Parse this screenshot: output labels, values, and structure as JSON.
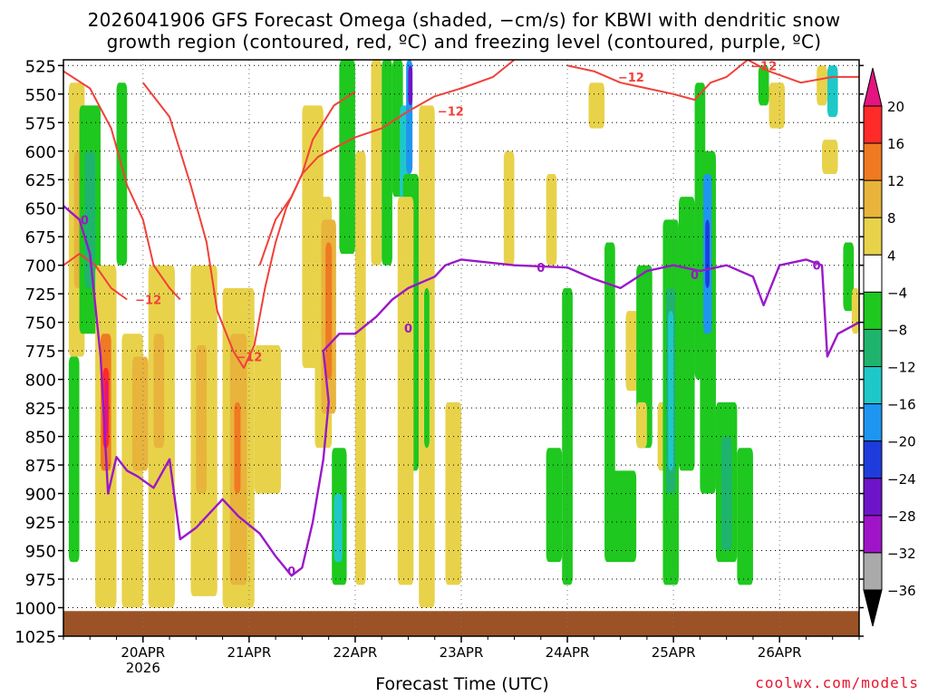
{
  "title_line1": "2026041906 GFS Forecast Omega (shaded, −cm/s) for KBWI with dendritic snow",
  "title_line2": "growth region (contoured, red, ºC) and freezing level (contoured, purple, ºC)",
  "xlabel": "Forecast Time (UTC)",
  "credit": "coolwx.com/models",
  "chart_data": {
    "type": "heatmap",
    "x_ticks": [
      "20APR",
      "21APR",
      "22APR",
      "23APR",
      "24APR",
      "25APR",
      "26APR"
    ],
    "x_tick_year": "2026",
    "x_range_days": [
      19.25,
      26.75
    ],
    "y_ticks": [
      525,
      550,
      575,
      600,
      625,
      650,
      675,
      700,
      725,
      750,
      775,
      800,
      825,
      850,
      875,
      900,
      925,
      950,
      975,
      1000,
      1025
    ],
    "y_range_hpa": [
      520,
      1025
    ],
    "grid": true,
    "colorbar": {
      "labels": [
        "20",
        "16",
        "12",
        "8",
        "4",
        "−4",
        "−8",
        "−12",
        "−16",
        "−20",
        "−24",
        "−28",
        "−32",
        "−36"
      ],
      "colors": [
        "#ff2a2a",
        "#f07a22",
        "#e8b43c",
        "#e8d24a",
        "#ffffff",
        "#1ec81e",
        "#1eb46e",
        "#1ec8c8",
        "#1e96f0",
        "#1e3cdc",
        "#6e14c8",
        "#a014c8",
        "#aaaaaa"
      ],
      "over_color": "#e3157f",
      "under_color": "#000000"
    },
    "ground_color": "#9b5226",
    "red_contour_label": "−12",
    "purple_contour_label": "0",
    "freezing_level": [
      [
        19.25,
        648
      ],
      [
        19.4,
        660
      ],
      [
        19.5,
        690
      ],
      [
        19.6,
        780
      ],
      [
        19.67,
        900
      ],
      [
        19.75,
        868
      ],
      [
        19.85,
        880
      ],
      [
        19.95,
        885
      ],
      [
        20.1,
        895
      ],
      [
        20.25,
        870
      ],
      [
        20.35,
        940
      ],
      [
        20.5,
        930
      ],
      [
        20.6,
        920
      ],
      [
        20.75,
        905
      ],
      [
        20.9,
        920
      ],
      [
        21.1,
        935
      ],
      [
        21.25,
        955
      ],
      [
        21.4,
        972
      ],
      [
        21.5,
        965
      ],
      [
        21.6,
        925
      ],
      [
        21.7,
        870
      ],
      [
        21.75,
        820
      ],
      [
        21.7,
        775
      ],
      [
        21.85,
        760
      ],
      [
        22.0,
        760
      ],
      [
        22.2,
        745
      ],
      [
        22.35,
        730
      ],
      [
        22.5,
        720
      ],
      [
        22.75,
        710
      ],
      [
        22.85,
        700
      ],
      [
        23.0,
        695
      ],
      [
        23.5,
        700
      ],
      [
        24.0,
        702
      ],
      [
        24.25,
        712
      ],
      [
        24.5,
        720
      ],
      [
        24.75,
        705
      ],
      [
        25.0,
        700
      ],
      [
        25.25,
        705
      ],
      [
        25.5,
        700
      ],
      [
        25.75,
        710
      ],
      [
        25.85,
        735
      ],
      [
        26.0,
        700
      ],
      [
        26.25,
        695
      ],
      [
        26.4,
        700
      ],
      [
        26.45,
        780
      ],
      [
        26.55,
        760
      ],
      [
        26.75,
        750
      ]
    ],
    "dgz_top": [
      [
        19.25,
        530
      ],
      [
        19.5,
        545
      ],
      [
        19.7,
        580
      ],
      [
        19.85,
        630
      ],
      [
        20.0,
        660
      ],
      [
        20.1,
        700
      ],
      [
        20.25,
        720
      ],
      [
        20.35,
        730
      ]
    ],
    "dgz_upper": [
      [
        19.25,
        700
      ],
      [
        19.4,
        690
      ],
      [
        19.55,
        700
      ],
      [
        19.7,
        720
      ],
      [
        19.85,
        730
      ]
    ],
    "dgz_mid": [
      [
        20.0,
        540
      ],
      [
        20.25,
        570
      ],
      [
        20.45,
        630
      ],
      [
        20.6,
        680
      ],
      [
        20.7,
        740
      ],
      [
        20.85,
        775
      ],
      [
        20.95,
        790
      ],
      [
        21.05,
        770
      ],
      [
        21.15,
        720
      ],
      [
        21.25,
        680
      ],
      [
        21.35,
        650
      ],
      [
        21.5,
        620
      ],
      [
        21.6,
        590
      ],
      [
        21.8,
        560
      ],
      [
        22.0,
        548
      ]
    ],
    "dgz_low": [
      [
        21.1,
        700
      ],
      [
        21.25,
        660
      ],
      [
        21.4,
        640
      ],
      [
        21.5,
        620
      ],
      [
        21.65,
        605
      ],
      [
        21.85,
        595
      ],
      [
        22.0,
        588
      ],
      [
        22.25,
        580
      ],
      [
        22.5,
        565
      ],
      [
        22.75,
        552
      ],
      [
        23.0,
        545
      ],
      [
        23.3,
        535
      ],
      [
        23.5,
        520
      ]
    ],
    "dgz_right": [
      [
        24.0,
        525
      ],
      [
        24.25,
        530
      ],
      [
        24.5,
        540
      ],
      [
        24.75,
        545
      ],
      [
        25.0,
        550
      ],
      [
        25.2,
        555
      ],
      [
        25.35,
        540
      ],
      [
        25.5,
        535
      ],
      [
        25.7,
        520
      ],
      [
        25.9,
        530
      ],
      [
        26.2,
        540
      ],
      [
        26.5,
        535
      ],
      [
        26.75,
        535
      ]
    ],
    "omega_cells": [
      [
        19.3,
        19.45,
        540,
        780,
        "#e8d24a"
      ],
      [
        19.35,
        19.5,
        600,
        720,
        "#e8b43c"
      ],
      [
        19.4,
        19.6,
        560,
        760,
        "#1ec81e"
      ],
      [
        19.45,
        19.55,
        600,
        720,
        "#1eb46e"
      ],
      [
        19.55,
        19.75,
        700,
        1000,
        "#e8d24a"
      ],
      [
        19.6,
        19.7,
        760,
        880,
        "#f07a22"
      ],
      [
        19.62,
        19.68,
        790,
        860,
        "#ff2a2a"
      ],
      [
        19.64,
        19.67,
        800,
        850,
        "#e3157f"
      ],
      [
        19.75,
        19.85,
        540,
        700,
        "#1ec81e"
      ],
      [
        19.3,
        19.4,
        780,
        960,
        "#1ec81e"
      ],
      [
        19.8,
        20.0,
        760,
        1000,
        "#e8d24a"
      ],
      [
        19.9,
        20.05,
        780,
        880,
        "#e8b43c"
      ],
      [
        20.05,
        20.3,
        700,
        1000,
        "#e8d24a"
      ],
      [
        20.1,
        20.2,
        760,
        860,
        "#e8b43c"
      ],
      [
        20.45,
        20.7,
        700,
        990,
        "#e8d24a"
      ],
      [
        20.5,
        20.6,
        770,
        900,
        "#e8b43c"
      ],
      [
        20.75,
        21.05,
        720,
        1000,
        "#e8d24a"
      ],
      [
        20.82,
        20.98,
        760,
        980,
        "#e8b43c"
      ],
      [
        20.86,
        20.92,
        820,
        900,
        "#f07a22"
      ],
      [
        21.05,
        21.3,
        770,
        900,
        "#e8d24a"
      ],
      [
        21.5,
        21.7,
        560,
        790,
        "#e8d24a"
      ],
      [
        21.62,
        21.78,
        640,
        860,
        "#e8d24a"
      ],
      [
        21.68,
        21.82,
        660,
        830,
        "#e8b43c"
      ],
      [
        21.72,
        21.78,
        680,
        800,
        "#f07a22"
      ],
      [
        21.78,
        21.92,
        860,
        980,
        "#1ec81e"
      ],
      [
        21.8,
        21.88,
        900,
        960,
        "#1ec8c8"
      ],
      [
        21.85,
        22.0,
        520,
        690,
        "#1ec81e"
      ],
      [
        22.0,
        22.1,
        600,
        980,
        "#e8d24a"
      ],
      [
        22.15,
        22.25,
        520,
        700,
        "#e8d24a"
      ],
      [
        22.25,
        22.35,
        520,
        700,
        "#1ec81e"
      ],
      [
        22.35,
        22.45,
        520,
        640,
        "#1ec81e"
      ],
      [
        22.42,
        22.5,
        560,
        660,
        "#1ec8c8"
      ],
      [
        22.48,
        22.54,
        520,
        620,
        "#1e96f0"
      ],
      [
        22.5,
        22.54,
        525,
        560,
        "#6e14c8"
      ],
      [
        22.45,
        22.6,
        620,
        880,
        "#1ec81e"
      ],
      [
        22.4,
        22.55,
        640,
        980,
        "#e8d24a"
      ],
      [
        22.6,
        22.75,
        560,
        1000,
        "#e8d24a"
      ],
      [
        22.65,
        22.7,
        720,
        860,
        "#1ec81e"
      ],
      [
        22.85,
        23.0,
        820,
        980,
        "#e8d24a"
      ],
      [
        23.4,
        23.5,
        600,
        700,
        "#e8d24a"
      ],
      [
        23.8,
        23.9,
        620,
        700,
        "#e8d24a"
      ],
      [
        23.8,
        23.95,
        860,
        960,
        "#1ec81e"
      ],
      [
        23.95,
        24.05,
        720,
        980,
        "#1ec81e"
      ],
      [
        24.2,
        24.35,
        540,
        580,
        "#e8d24a"
      ],
      [
        24.35,
        24.45,
        680,
        960,
        "#1ec81e"
      ],
      [
        24.4,
        24.65,
        880,
        960,
        "#1ec81e"
      ],
      [
        24.55,
        24.7,
        740,
        810,
        "#e8d24a"
      ],
      [
        24.65,
        24.8,
        700,
        860,
        "#1ec81e"
      ],
      [
        24.65,
        24.75,
        820,
        860,
        "#e8d24a"
      ],
      [
        24.85,
        25.0,
        820,
        880,
        "#e8d24a"
      ],
      [
        24.9,
        25.05,
        660,
        980,
        "#1ec81e"
      ],
      [
        24.93,
        25.02,
        720,
        900,
        "#1eb46e"
      ],
      [
        24.95,
        25.0,
        740,
        880,
        "#1ec8c8"
      ],
      [
        25.05,
        25.2,
        640,
        880,
        "#1ec81e"
      ],
      [
        25.2,
        25.3,
        540,
        800,
        "#1ec81e"
      ],
      [
        25.25,
        25.4,
        600,
        900,
        "#1ec81e"
      ],
      [
        25.28,
        25.36,
        620,
        760,
        "#1e96f0"
      ],
      [
        25.3,
        25.34,
        660,
        720,
        "#1e3cdc"
      ],
      [
        25.4,
        25.6,
        820,
        960,
        "#1ec81e"
      ],
      [
        25.45,
        25.55,
        850,
        950,
        "#1eb46e"
      ],
      [
        25.6,
        25.75,
        860,
        980,
        "#1ec81e"
      ],
      [
        25.8,
        25.9,
        525,
        560,
        "#1ec81e"
      ],
      [
        25.9,
        26.05,
        540,
        580,
        "#e8d24a"
      ],
      [
        26.35,
        26.45,
        525,
        560,
        "#e8d24a"
      ],
      [
        26.4,
        26.55,
        590,
        620,
        "#e8d24a"
      ],
      [
        26.45,
        26.55,
        525,
        570,
        "#1ec8c8"
      ],
      [
        26.6,
        26.7,
        680,
        740,
        "#1ec81e"
      ],
      [
        26.68,
        26.75,
        720,
        760,
        "#e8d24a"
      ]
    ]
  }
}
